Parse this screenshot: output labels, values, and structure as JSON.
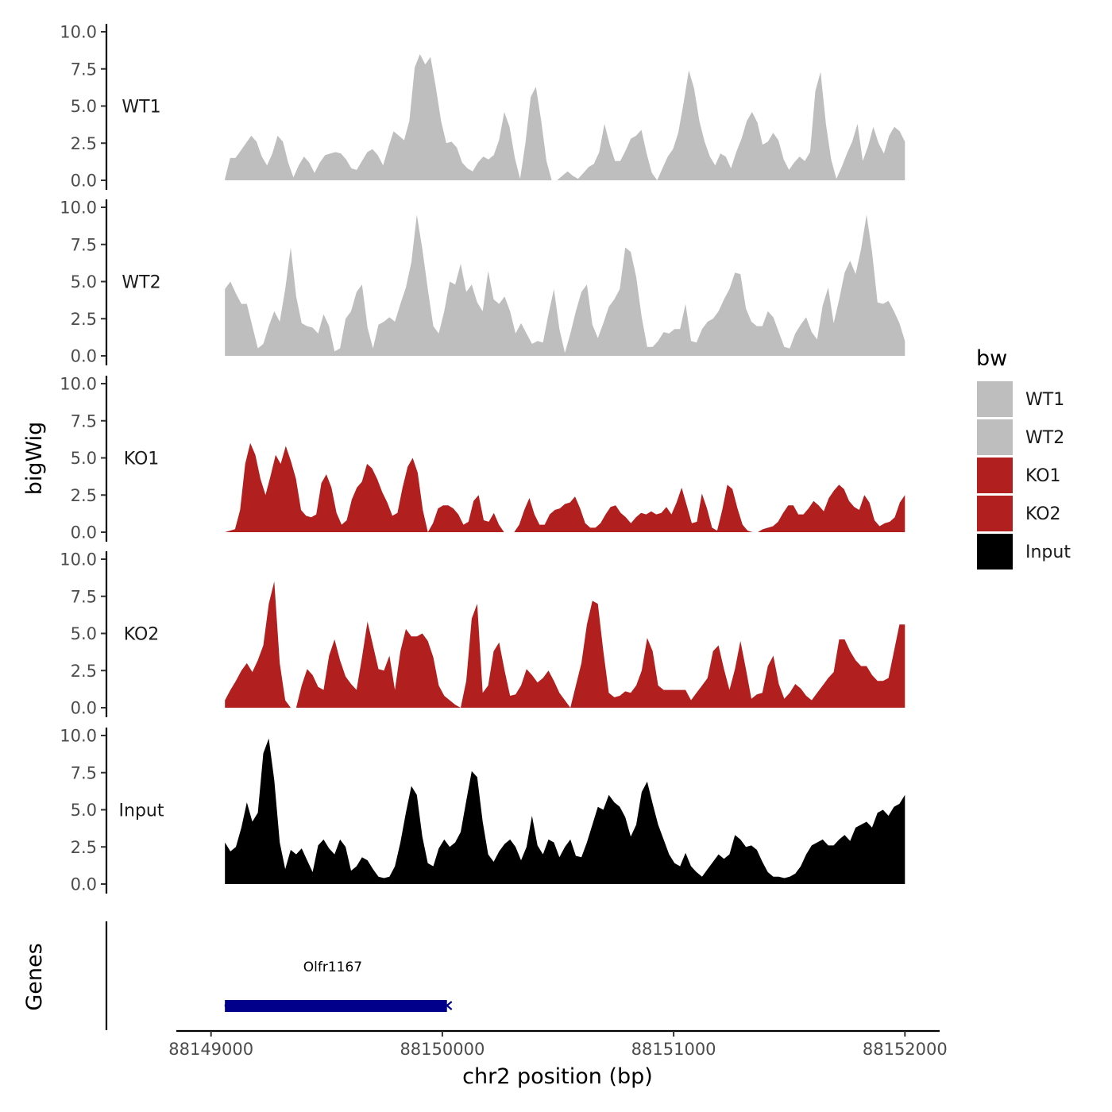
{
  "chart_data": {
    "type": "area",
    "y_axis_title": "bigWig",
    "x_axis_title": "chr2 position (bp)",
    "genes_axis_title": "Genes",
    "xlim": [
      88148850,
      88152150
    ],
    "data_range": [
      88149060,
      88152000
    ],
    "x_ticks": [
      88149000,
      88150000,
      88151000,
      88152000
    ],
    "x_tick_labels": [
      "88149000",
      "88150000",
      "88151000",
      "88152000"
    ],
    "ylim": [
      0,
      10
    ],
    "y_ticks": [
      0,
      2.5,
      5,
      7.5,
      10
    ],
    "y_tick_labels": [
      "0.0",
      "2.5",
      "5.0",
      "7.5",
      "10.0"
    ],
    "tracks": [
      {
        "name": "WT1",
        "color": "#bebebe",
        "values": [
          0.1,
          1.5,
          1.5,
          2.0,
          2.5,
          3.0,
          2.6,
          1.6,
          1.0,
          1.8,
          3.0,
          2.6,
          1.2,
          0.2,
          1.0,
          1.6,
          1.2,
          0.5,
          1.2,
          1.7,
          1.8,
          1.9,
          1.8,
          1.4,
          0.8,
          0.7,
          1.3,
          1.9,
          2.1,
          1.7,
          1.0,
          2.2,
          3.3,
          3.0,
          2.7,
          4.0,
          7.6,
          8.5,
          7.8,
          8.3,
          6.3,
          4.0,
          2.5,
          2.6,
          2.2,
          1.2,
          0.8,
          0.6,
          1.2,
          1.6,
          1.4,
          1.7,
          2.7,
          4.6,
          3.6,
          1.5,
          0.1,
          2.5,
          5.6,
          6.3,
          4.0,
          1.3,
          0.0,
          0.0,
          0.3,
          0.6,
          0.3,
          0.1,
          0.5,
          0.9,
          1.1,
          1.9,
          3.8,
          2.4,
          1.3,
          1.3,
          2.0,
          2.8,
          3.0,
          3.4,
          1.8,
          0.5,
          0.0,
          0.8,
          1.6,
          2.1,
          3.2,
          5.2,
          7.4,
          6.2,
          4.0,
          2.6,
          1.6,
          1.0,
          1.8,
          1.6,
          0.8,
          1.9,
          2.8,
          4.0,
          4.6,
          3.9,
          2.4,
          2.6,
          3.2,
          2.7,
          1.4,
          0.7,
          1.2,
          1.6,
          1.3,
          1.9,
          6.0,
          7.3,
          3.8,
          1.4,
          0.1,
          0.9,
          1.8,
          2.6,
          3.8,
          1.3,
          2.3,
          3.6,
          2.5,
          1.8,
          3.0,
          3.6,
          3.3,
          2.6
        ],
        "label_color": "#1a1a1a"
      },
      {
        "name": "WT2",
        "color": "#bebebe",
        "values": [
          4.5,
          5.0,
          4.2,
          3.5,
          3.5,
          2.0,
          0.5,
          0.8,
          2.0,
          3.0,
          2.3,
          4.5,
          7.3,
          4.0,
          2.2,
          2.0,
          1.9,
          1.5,
          2.8,
          2.0,
          0.3,
          0.5,
          2.5,
          3.0,
          4.3,
          4.8,
          1.9,
          0.5,
          2.1,
          2.3,
          2.6,
          2.3,
          3.5,
          4.6,
          6.3,
          9.5,
          7.2,
          4.5,
          2.0,
          1.5,
          3.0,
          5.0,
          4.8,
          6.2,
          4.3,
          4.8,
          3.6,
          3.0,
          5.7,
          3.8,
          3.5,
          4.0,
          3.0,
          1.5,
          2.2,
          1.5,
          0.8,
          1.0,
          0.9,
          2.8,
          4.5,
          1.8,
          0.2,
          1.5,
          3.0,
          4.3,
          4.8,
          2.1,
          1.2,
          2.2,
          3.3,
          3.8,
          4.5,
          7.3,
          7.0,
          5.3,
          2.6,
          0.6,
          0.6,
          1.0,
          1.6,
          1.5,
          1.8,
          1.8,
          3.5,
          1.0,
          0.9,
          1.8,
          2.3,
          2.5,
          3.0,
          3.8,
          4.5,
          5.6,
          5.5,
          3.2,
          2.3,
          2.0,
          2.0,
          3.0,
          2.6,
          1.6,
          0.6,
          0.5,
          1.5,
          2.1,
          2.6,
          1.6,
          1.1,
          3.4,
          4.6,
          2.2,
          3.8,
          5.6,
          6.4,
          5.5,
          7.2,
          9.5,
          7.0,
          3.6,
          3.5,
          3.7,
          3.0,
          2.2,
          1.0
        ],
        "label_color": "#1a1a1a"
      },
      {
        "name": "KO1",
        "color": "#b21f1f",
        "values": [
          0.0,
          0.1,
          0.2,
          1.5,
          4.6,
          6.0,
          5.2,
          3.6,
          2.5,
          3.8,
          5.2,
          4.6,
          5.8,
          4.8,
          3.6,
          1.5,
          1.1,
          1.0,
          1.2,
          3.3,
          3.9,
          3.0,
          1.3,
          0.5,
          0.8,
          2.2,
          3.0,
          3.4,
          4.6,
          4.3,
          3.6,
          2.7,
          2.0,
          1.1,
          1.3,
          3.0,
          4.4,
          5.0,
          4.0,
          1.5,
          0.0,
          0.6,
          1.6,
          1.8,
          1.8,
          1.6,
          1.2,
          0.5,
          0.7,
          2.1,
          2.5,
          0.8,
          0.7,
          1.3,
          0.5,
          0.0,
          0.0,
          0.0,
          0.5,
          1.5,
          2.3,
          1.2,
          0.5,
          0.5,
          1.2,
          1.5,
          1.6,
          1.9,
          2.0,
          2.4,
          1.6,
          0.6,
          0.3,
          0.3,
          0.6,
          1.2,
          1.7,
          1.8,
          1.3,
          1.0,
          0.6,
          1.0,
          1.3,
          1.2,
          1.4,
          1.2,
          1.3,
          1.7,
          1.2,
          2.0,
          3.0,
          1.8,
          0.6,
          0.7,
          2.6,
          1.6,
          0.3,
          0.1,
          1.5,
          3.2,
          2.9,
          1.6,
          0.5,
          0.1,
          0.0,
          0.0,
          0.2,
          0.3,
          0.4,
          0.7,
          1.3,
          1.8,
          1.8,
          1.2,
          1.2,
          1.6,
          2.1,
          1.8,
          1.4,
          2.3,
          2.8,
          3.2,
          2.9,
          2.1,
          1.7,
          1.5,
          2.5,
          2.0,
          0.8,
          0.4,
          0.6,
          0.7,
          1.0,
          2.0,
          2.5
        ],
        "label_color": "#1a1a1a"
      },
      {
        "name": "KO2",
        "color": "#b21f1f",
        "values": [
          0.5,
          1.2,
          1.8,
          2.5,
          3.0,
          2.4,
          3.2,
          4.2,
          7.0,
          8.5,
          3.0,
          0.5,
          0.0,
          0.0,
          1.5,
          2.6,
          2.2,
          1.4,
          1.2,
          3.5,
          4.6,
          3.2,
          2.1,
          1.6,
          1.2,
          3.4,
          5.8,
          4.2,
          2.6,
          2.5,
          3.5,
          1.2,
          3.8,
          5.3,
          4.8,
          4.8,
          5.0,
          4.5,
          3.4,
          1.5,
          0.8,
          0.5,
          0.2,
          0.0,
          1.8,
          6.0,
          7.0,
          1.0,
          1.5,
          3.8,
          4.4,
          2.5,
          0.8,
          0.9,
          1.5,
          2.6,
          2.2,
          1.7,
          2.0,
          2.5,
          1.8,
          1.0,
          0.5,
          0.0,
          1.5,
          3.0,
          5.6,
          7.2,
          7.0,
          3.8,
          1.0,
          0.7,
          0.8,
          1.1,
          1.0,
          1.5,
          2.5,
          4.7,
          3.8,
          1.5,
          1.2,
          1.2,
          1.2,
          1.2,
          1.2,
          0.5,
          1.0,
          1.5,
          2.0,
          3.8,
          4.2,
          2.6,
          1.2,
          2.6,
          4.5,
          2.6,
          0.6,
          0.9,
          1.0,
          2.8,
          3.5,
          1.6,
          0.6,
          1.0,
          1.6,
          1.3,
          0.8,
          0.5,
          1.0,
          1.5,
          2.0,
          2.4,
          4.6,
          4.6,
          3.8,
          3.2,
          2.8,
          2.8,
          2.2,
          1.8,
          1.8,
          2.0,
          3.8,
          5.6,
          5.6
        ],
        "label_color": "#1a1a1a"
      },
      {
        "name": "Input",
        "color": "#000000",
        "values": [
          2.8,
          2.2,
          2.5,
          3.8,
          5.5,
          4.2,
          4.8,
          8.8,
          9.8,
          7.0,
          2.8,
          1.0,
          2.3,
          2.0,
          2.4,
          1.6,
          0.8,
          2.6,
          3.0,
          2.4,
          2.0,
          3.0,
          2.5,
          0.9,
          1.2,
          1.8,
          1.6,
          1.0,
          0.5,
          0.4,
          0.5,
          1.2,
          2.8,
          4.8,
          6.6,
          6.0,
          3.2,
          1.4,
          1.2,
          2.4,
          3.0,
          2.5,
          2.8,
          3.5,
          5.6,
          7.6,
          7.2,
          4.2,
          2.0,
          1.5,
          2.2,
          2.7,
          3.0,
          2.5,
          1.6,
          2.5,
          4.6,
          2.6,
          2.0,
          3.0,
          2.8,
          1.8,
          2.5,
          3.0,
          1.9,
          1.8,
          2.8,
          4.0,
          5.2,
          5.0,
          6.0,
          5.5,
          5.2,
          4.5,
          3.2,
          4.0,
          6.2,
          6.9,
          5.4,
          4.0,
          3.0,
          2.0,
          1.4,
          1.2,
          2.1,
          1.2,
          0.8,
          0.5,
          1.0,
          1.5,
          2.0,
          1.7,
          2.0,
          3.3,
          3.0,
          2.5,
          2.6,
          2.3,
          1.5,
          0.8,
          0.5,
          0.5,
          0.4,
          0.5,
          0.7,
          1.2,
          2.0,
          2.6,
          2.8,
          3.0,
          2.6,
          2.6,
          3.0,
          3.3,
          2.9,
          3.8,
          4.0,
          4.2,
          3.8,
          4.8,
          5.0,
          4.6,
          5.2,
          5.4,
          6.0
        ],
        "label_color": "#1a1a1a"
      }
    ],
    "legend": {
      "title": "bw",
      "position": "right",
      "items": [
        {
          "label": "WT1",
          "color": "#bebebe"
        },
        {
          "label": "WT2",
          "color": "#bebebe"
        },
        {
          "label": "KO1",
          "color": "#b21f1f"
        },
        {
          "label": "KO2",
          "color": "#b21f1f"
        },
        {
          "label": "Input",
          "color": "#000000"
        }
      ]
    },
    "genes": [
      {
        "name": "Olfr1167",
        "start": 88149060,
        "end": 88150020,
        "color": "#00008b"
      }
    ]
  }
}
